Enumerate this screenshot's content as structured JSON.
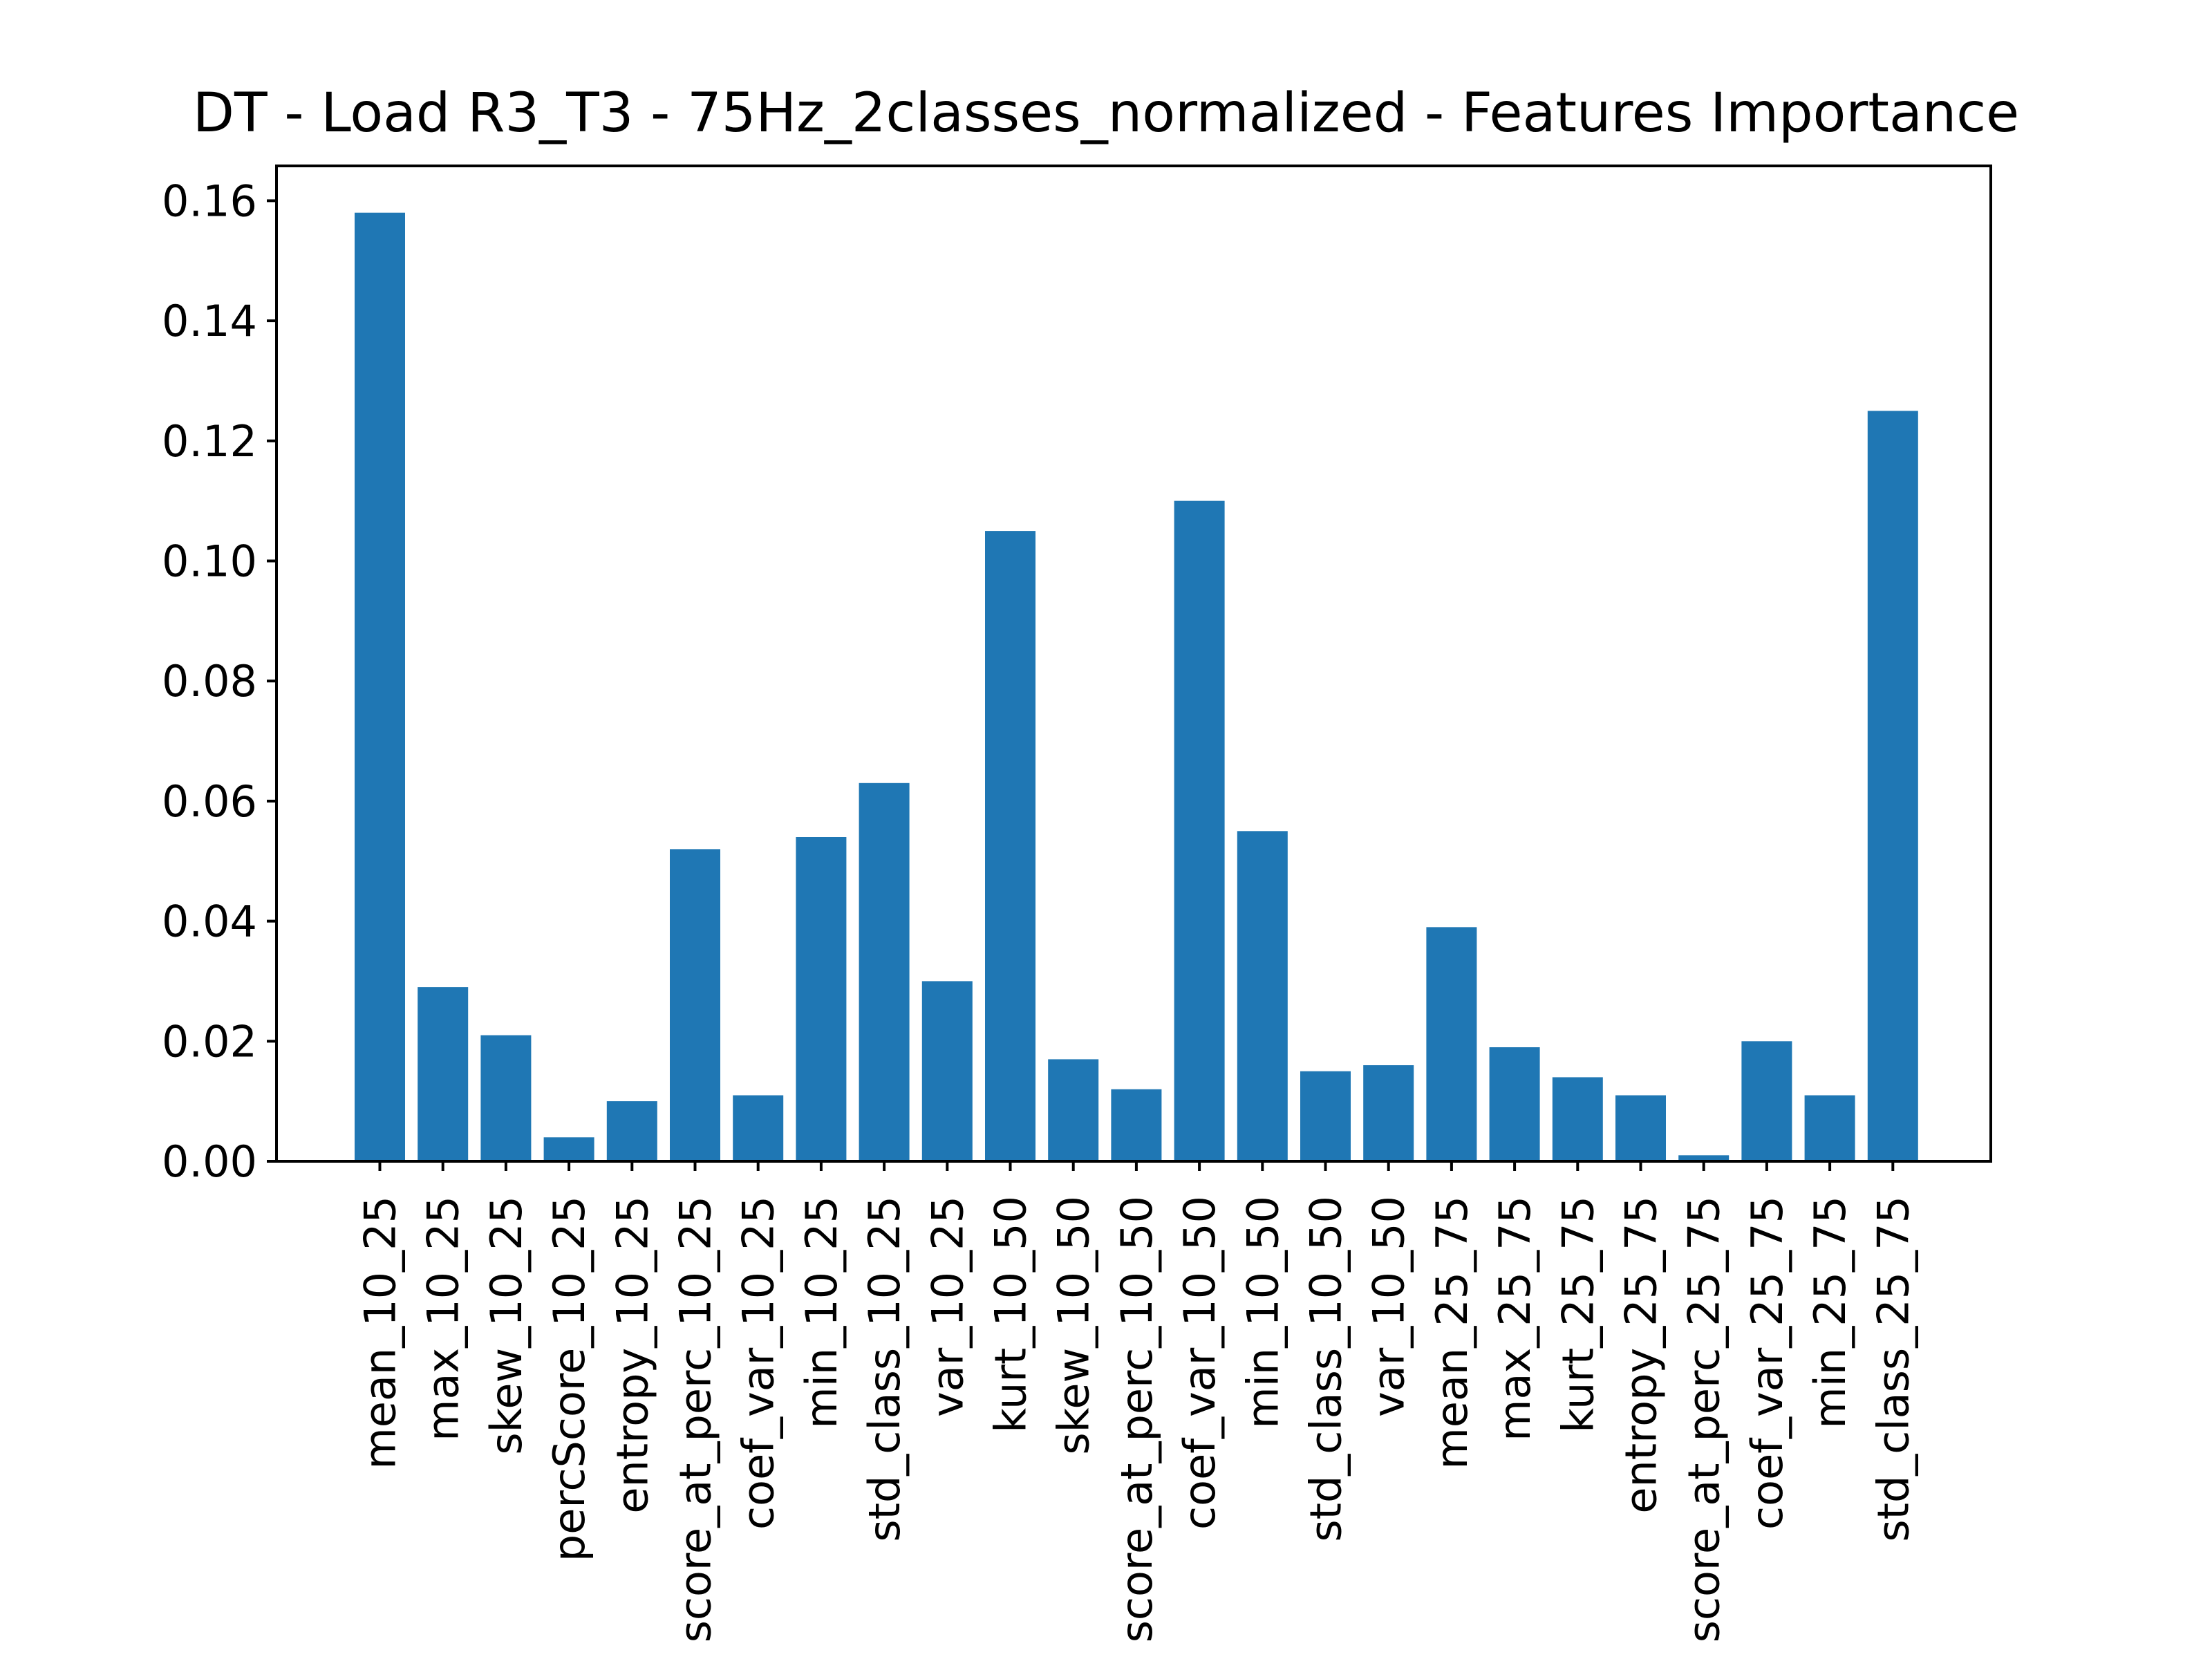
{
  "chart_data": {
    "type": "bar",
    "title": "DT - Load R3_T3 - 75Hz_2classes_normalized - Features Importance",
    "xlabel": "",
    "ylabel": "",
    "categories": [
      "mean_10_25",
      "max_10_25",
      "skew_10_25",
      "percScore_10_25",
      "entropy_10_25",
      "score_at_perc_10_25",
      "coef_var_10_25",
      "min_10_25",
      "std_class_10_25",
      "var_10_25",
      "kurt_10_50",
      "skew_10_50",
      "score_at_perc_10_50",
      "coef_var_10_50",
      "min_10_50",
      "std_class_10_50",
      "var_10_50",
      "mean_25_75",
      "max_25_75",
      "kurt_25_75",
      "entropy_25_75",
      "score_at_perc_25_75",
      "coef_var_25_75",
      "min_25_75",
      "std_class_25_75"
    ],
    "values": [
      0.158,
      0.029,
      0.021,
      0.004,
      0.01,
      0.052,
      0.011,
      0.054,
      0.063,
      0.03,
      0.105,
      0.017,
      0.012,
      0.11,
      0.055,
      0.015,
      0.016,
      0.039,
      0.019,
      0.014,
      0.011,
      0.001,
      0.02,
      0.011,
      0.125
    ],
    "ylim": [
      0,
      0.1658
    ],
    "yticks": [
      "0.00",
      "0.02",
      "0.04",
      "0.06",
      "0.08",
      "0.10",
      "0.12",
      "0.14",
      "0.16"
    ],
    "grid": false,
    "legend": "none",
    "bar_color": "#1f77b4"
  }
}
